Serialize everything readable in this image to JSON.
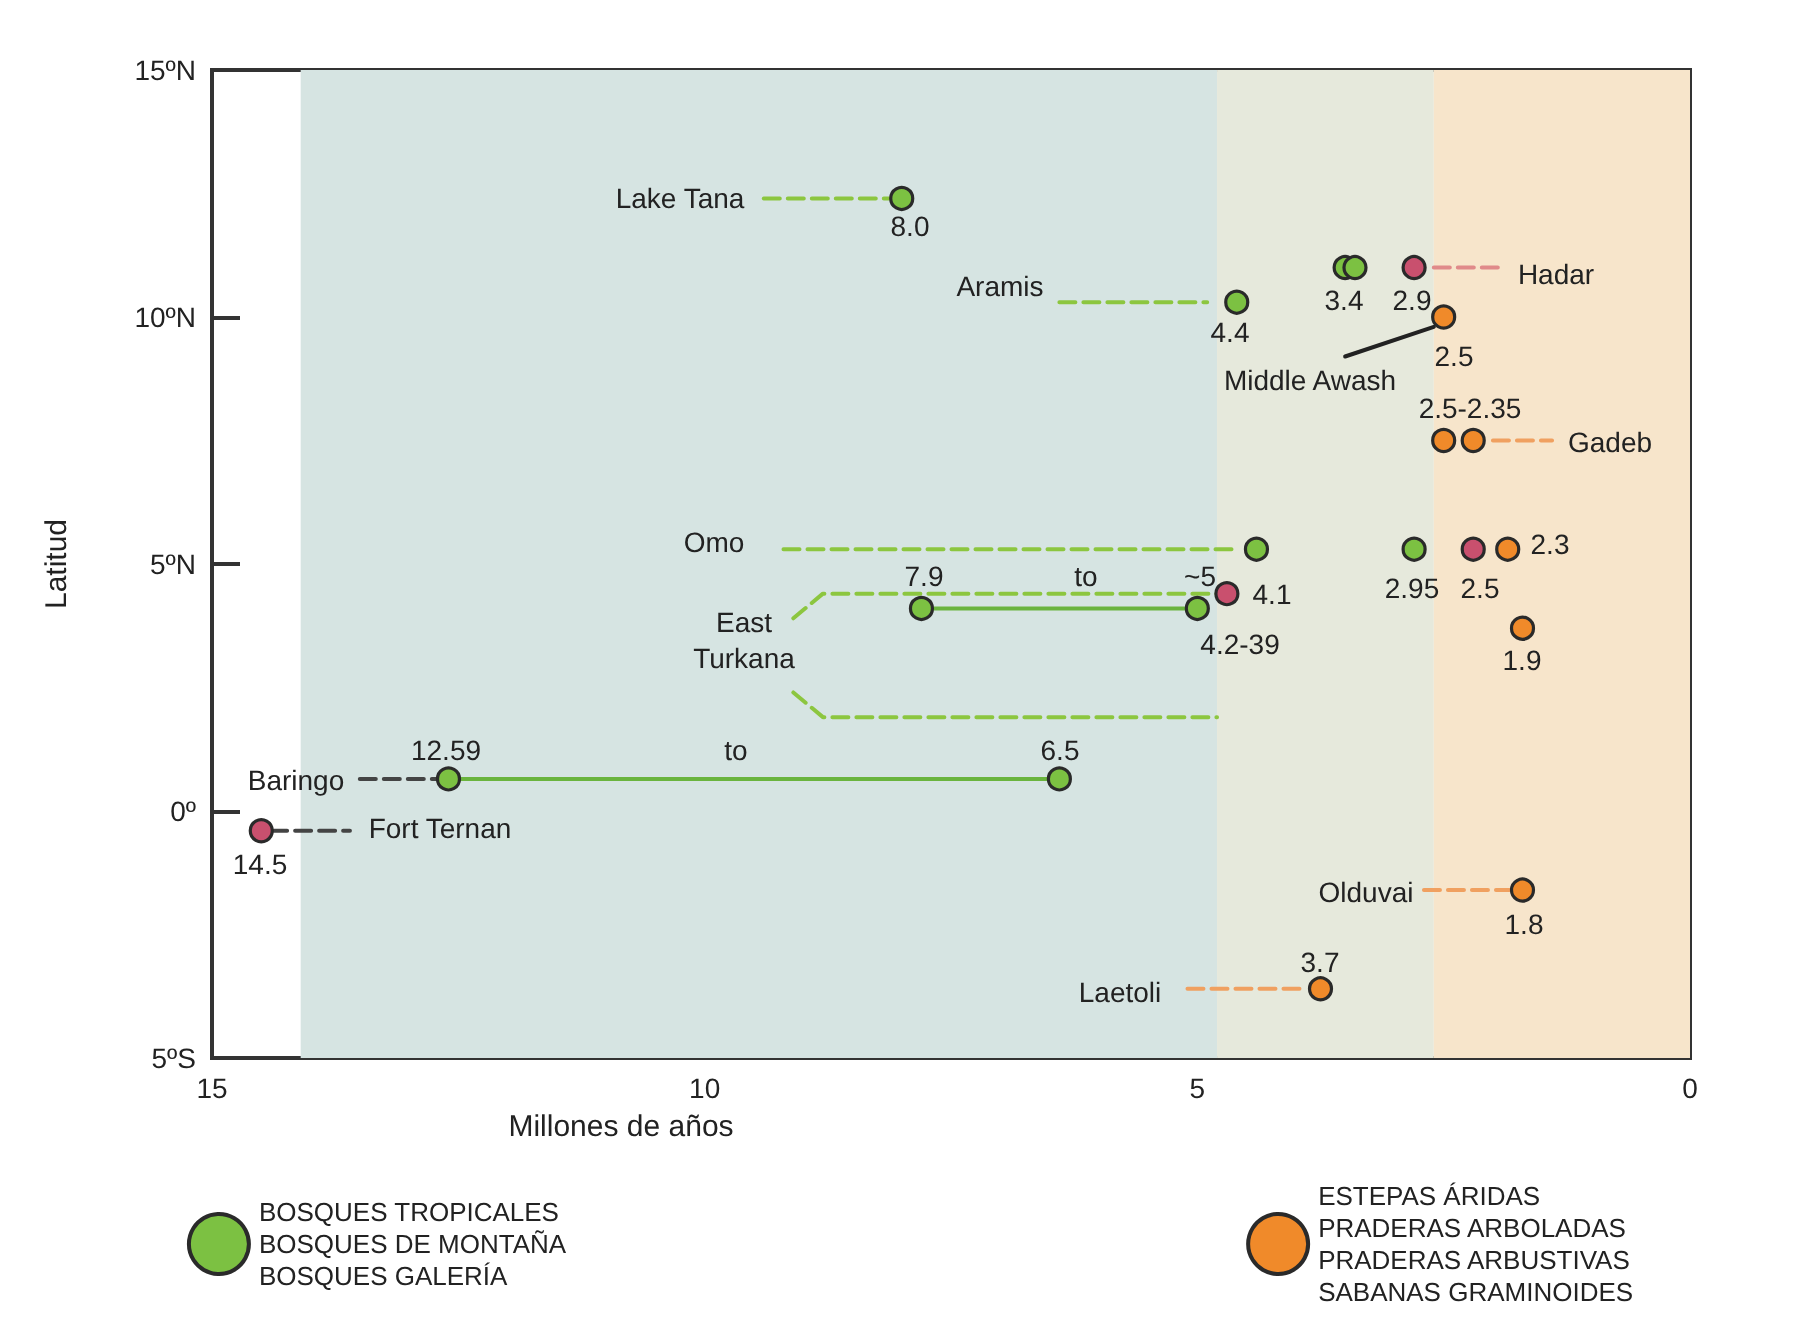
{
  "chart_data": {
    "type": "scatter",
    "xlabel": "Millones de años",
    "ylabel": "Latitud",
    "xlim": [
      15,
      0
    ],
    "xticks": [
      15,
      10,
      5,
      0
    ],
    "ylim": [
      -5,
      15
    ],
    "yticks": [
      {
        "value": 15,
        "label": "15ºN"
      },
      {
        "value": 10,
        "label": "10ºN"
      },
      {
        "value": 5,
        "label": "5ºN"
      },
      {
        "value": 0,
        "label": "0º"
      },
      {
        "value": -5,
        "label": "5ºS"
      }
    ],
    "legend": "bottom",
    "marker": "circle",
    "bands": [
      {
        "axis": "x",
        "from": 14.1,
        "to": 4.8,
        "color": "#d6e4e2"
      },
      {
        "axis": "x",
        "from": 4.8,
        "to": 2.6,
        "color": "#e6e9dc"
      },
      {
        "axis": "x",
        "from": 2.6,
        "to": 0,
        "color": "#f7e5cb"
      }
    ],
    "series": [
      {
        "type": "line",
        "marker": "none",
        "color": "#8cc63f",
        "line_style": "dashed",
        "x": [
          9.4,
          8.1
        ],
        "values": [
          12.4,
          12.4
        ]
      },
      {
        "type": "line",
        "marker": "none",
        "color": "#8cc63f",
        "line_style": "dashed",
        "x": [
          6.4,
          4.9
        ],
        "values": [
          10.3,
          10.3
        ]
      },
      {
        "type": "line",
        "marker": "none",
        "color": "#e08a8a",
        "line_style": "dashed",
        "x": [
          2.6,
          1.9
        ],
        "values": [
          11.0,
          11.0
        ]
      },
      {
        "type": "line",
        "marker": "none",
        "color": "#222222",
        "line_style": "solid",
        "x": [
          3.5,
          2.6
        ],
        "values": [
          9.2,
          9.8
        ]
      },
      {
        "type": "line",
        "marker": "none",
        "color": "#f0a060",
        "line_style": "dashed",
        "x": [
          2.0,
          1.4
        ],
        "values": [
          7.5,
          7.5
        ]
      },
      {
        "type": "line",
        "marker": "none",
        "color": "#8cc63f",
        "line_style": "dashed",
        "x": [
          9.2,
          4.6
        ],
        "values": [
          5.3,
          5.3
        ]
      },
      {
        "type": "line",
        "marker": "none",
        "color": "#8cc63f",
        "line_style": "dashed",
        "x": [
          9.1,
          8.8,
          4.8
        ],
        "values": [
          3.9,
          4.4,
          4.4
        ]
      },
      {
        "type": "line",
        "marker": "none",
        "color": "#8cc63f",
        "line_style": "dashed",
        "x": [
          9.1,
          8.8,
          4.8
        ],
        "values": [
          2.4,
          1.9,
          1.9
        ]
      },
      {
        "type": "line",
        "marker": "none",
        "color": "#6ab43e",
        "line_style": "solid",
        "x": [
          7.8,
          5.0
        ],
        "values": [
          4.1,
          4.1
        ]
      },
      {
        "type": "line",
        "marker": "none",
        "color": "#444444",
        "line_style": "dashed",
        "x": [
          13.5,
          12.7
        ],
        "values": [
          0.65,
          0.65
        ]
      },
      {
        "type": "line",
        "marker": "none",
        "color": "#6ab43e",
        "line_style": "solid",
        "x": [
          12.6,
          6.4
        ],
        "values": [
          0.65,
          0.65
        ]
      },
      {
        "type": "line",
        "marker": "none",
        "color": "#444444",
        "line_style": "dashed",
        "x": [
          14.4,
          13.6
        ],
        "values": [
          -0.4,
          -0.4
        ]
      },
      {
        "type": "line",
        "marker": "none",
        "color": "#f0a060",
        "line_style": "dashed",
        "x": [
          2.7,
          1.8
        ],
        "values": [
          -1.6,
          -1.6
        ]
      },
      {
        "type": "line",
        "marker": "none",
        "color": "#f0a060",
        "line_style": "dashed",
        "x": [
          5.1,
          3.9
        ],
        "values": [
          -3.6,
          -3.6
        ]
      },
      {
        "name": "BOSQUES TROPICALES\nBOSQUES DE MONTAÑA\nBOSQUES GALERÍA",
        "color": "#7cc142",
        "x": [
          8.0,
          4.6,
          3.5,
          3.4,
          4.4,
          7.8,
          5.0,
          2.8,
          12.6,
          6.4
        ],
        "values": [
          12.4,
          10.3,
          11.0,
          11.0,
          5.3,
          4.1,
          4.1,
          5.3,
          0.65,
          0.65
        ]
      },
      {
        "color": "#c9506e",
        "x": [
          2.8,
          4.7,
          2.2,
          14.5
        ],
        "values": [
          11.0,
          4.4,
          5.3,
          -0.4
        ]
      },
      {
        "name": "ESTEPAS ÁRIDAS\nPRADERAS ARBOLADAS\nPRADERAS ARBUSTIVAS\nSABANAS GRAMINOIDES",
        "color": "#f08a2a",
        "x": [
          2.5,
          2.5,
          2.2,
          1.85,
          1.7,
          1.7,
          3.75
        ],
        "values": [
          10.0,
          7.5,
          7.5,
          5.3,
          3.7,
          -1.6,
          -3.6
        ]
      }
    ],
    "annotations": [
      "Lake Tana",
      "8.0",
      "Aramis",
      "4.4",
      "3.4",
      "2.9",
      "Hadar",
      "2.5",
      "Middle Awash",
      "2.5-2.35",
      "Gadeb",
      "Omo",
      "2.95",
      "2.3",
      "2.5",
      "7.9",
      "to",
      "~5",
      "4.1",
      "East\nTurkana",
      "4.2-39",
      "1.9",
      "12.59",
      "to",
      "6.5",
      "Baringo",
      "Fort Ternan",
      "14.5",
      "Olduvai",
      "1.8",
      "3.7",
      "Laetoli"
    ]
  }
}
